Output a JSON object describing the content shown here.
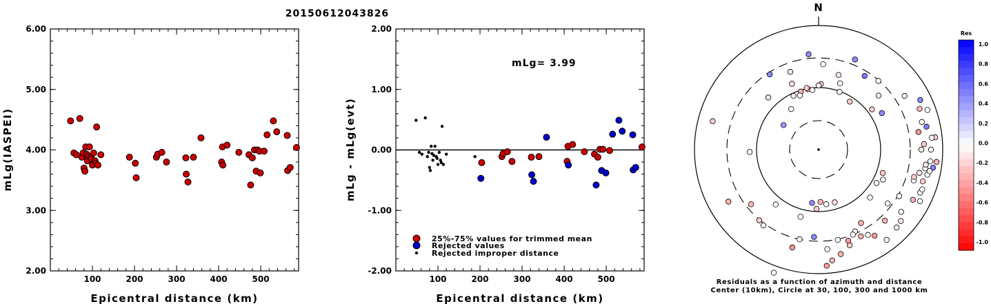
{
  "title": "20150612043826",
  "chart_data": [
    {
      "type": "scatter",
      "xlabel": "Epicentral distance (km)",
      "ylabel": "mLg(IASPEI)",
      "xlim": [
        0,
        590
      ],
      "ylim": [
        2.0,
        6.0
      ],
      "yticks": [
        "2.00",
        "3.00",
        "4.00",
        "5.00",
        "6.00"
      ],
      "xticks": [
        "100",
        "200",
        "300",
        "400",
        "500"
      ],
      "series": [
        {
          "points": [
            [
              48,
              4.48
            ],
            [
              56,
              3.95
            ],
            [
              62,
              3.92
            ],
            [
              70,
              4.52
            ],
            [
              75,
              3.88
            ],
            [
              78,
              3.95
            ],
            [
              80,
              3.7
            ],
            [
              82,
              3.65
            ],
            [
              84,
              4.05
            ],
            [
              86,
              3.93
            ],
            [
              88,
              3.82
            ],
            [
              90,
              3.9
            ],
            [
              93,
              4.05
            ],
            [
              96,
              3.88
            ],
            [
              98,
              3.85
            ],
            [
              100,
              3.75
            ],
            [
              103,
              3.95
            ],
            [
              106,
              3.82
            ],
            [
              108,
              3.78
            ],
            [
              110,
              4.38
            ],
            [
              113,
              3.75
            ],
            [
              120,
              3.92
            ],
            [
              188,
              3.88
            ],
            [
              202,
              3.78
            ],
            [
              204,
              3.54
            ],
            [
              252,
              3.88
            ],
            [
              255,
              3.93
            ],
            [
              265,
              3.96
            ],
            [
              276,
              3.8
            ],
            [
              322,
              3.87
            ],
            [
              323,
              3.6
            ],
            [
              327,
              3.47
            ],
            [
              340,
              3.88
            ],
            [
              358,
              4.2
            ],
            [
              407,
              3.8
            ],
            [
              409,
              4.05
            ],
            [
              410,
              3.75
            ],
            [
              420,
              4.08
            ],
            [
              448,
              3.96
            ],
            [
              472,
              3.92
            ],
            [
              476,
              3.42
            ],
            [
              480,
              3.87
            ],
            [
              485,
              4.0
            ],
            [
              489,
              3.65
            ],
            [
              492,
              4.0
            ],
            [
              497,
              3.98
            ],
            [
              499,
              3.62
            ],
            [
              508,
              3.98
            ],
            [
              515,
              4.25
            ],
            [
              530,
              4.48
            ],
            [
              538,
              4.3
            ],
            [
              563,
              4.24
            ],
            [
              564,
              3.66
            ],
            [
              570,
              3.71
            ],
            [
              585,
              4.04
            ]
          ]
        }
      ]
    },
    {
      "type": "scatter",
      "xlabel": "Epicentral distance (km)",
      "ylabel": "mLg - mLg(evt)",
      "xlim": [
        0,
        590
      ],
      "ylim": [
        -2.0,
        2.0
      ],
      "yticks": [
        "-2.00",
        "-1.00",
        "0.00",
        "1.00",
        "2.00"
      ],
      "xticks": [
        "100",
        "200",
        "300",
        "400",
        "500"
      ],
      "annotation": "mLg= 3.99",
      "legend": [
        "25%-75% values for trimmed mean",
        "Rejected values",
        "Rejected improper distance"
      ],
      "series": [
        {
          "name": "25%-75% values for trimmed mean",
          "points": [
            [
              204,
              -0.21
            ],
            [
              252,
              -0.11
            ],
            [
              255,
              -0.06
            ],
            [
              265,
              -0.03
            ],
            [
              276,
              -0.19
            ],
            [
              322,
              -0.12
            ],
            [
              340,
              -0.11
            ],
            [
              407,
              -0.19
            ],
            [
              409,
              0.06
            ],
            [
              420,
              0.09
            ],
            [
              448,
              -0.03
            ],
            [
              472,
              -0.07
            ],
            [
              480,
              -0.12
            ],
            [
              485,
              0.01
            ],
            [
              492,
              0.01
            ],
            [
              508,
              -0.01
            ],
            [
              585,
              0.05
            ]
          ]
        },
        {
          "name": "Rejected values",
          "points": [
            [
              202,
              -0.47
            ],
            [
              323,
              -0.41
            ],
            [
              327,
              -0.52
            ],
            [
              358,
              0.21
            ],
            [
              410,
              -0.25
            ],
            [
              476,
              -0.58
            ],
            [
              489,
              -0.34
            ],
            [
              499,
              -0.38
            ],
            [
              515,
              0.26
            ],
            [
              530,
              0.49
            ],
            [
              538,
              0.31
            ],
            [
              563,
              0.25
            ],
            [
              564,
              -0.33
            ],
            [
              570,
              -0.29
            ]
          ]
        },
        {
          "name": "Rejected improper distance",
          "points": [
            [
              48,
              0.49
            ],
            [
              56,
              -0.04
            ],
            [
              62,
              -0.07
            ],
            [
              70,
              0.53
            ],
            [
              75,
              -0.11
            ],
            [
              78,
              -0.04
            ],
            [
              80,
              -0.29
            ],
            [
              82,
              -0.34
            ],
            [
              84,
              0.06
            ],
            [
              86,
              -0.06
            ],
            [
              88,
              -0.17
            ],
            [
              90,
              -0.09
            ],
            [
              93,
              0.06
            ],
            [
              96,
              -0.11
            ],
            [
              98,
              -0.14
            ],
            [
              100,
              -0.24
            ],
            [
              103,
              -0.04
            ],
            [
              106,
              -0.17
            ],
            [
              108,
              -0.21
            ],
            [
              110,
              0.39
            ],
            [
              113,
              -0.24
            ],
            [
              120,
              -0.07
            ],
            [
              188,
              -0.11
            ]
          ]
        }
      ]
    },
    {
      "type": "polar-scatter",
      "north_label": "N",
      "caption_line1": "Residuals as a function of azimuth and distance",
      "caption_line2": "Center (10km), Circle at 30, 100, 300 and 1000 km",
      "colorbar_title": "Res",
      "colorbar_labels": [
        "1.0",
        "0.8",
        "0.6",
        "0.4",
        "0.2",
        "0.0",
        "-0.2",
        "-0.4",
        "-0.6",
        "-0.8",
        "-1.0"
      ],
      "colorbar_colors": [
        "#0000ff",
        "#3333ff",
        "#6666ff",
        "#9999ff",
        "#c5c5ff",
        "#ffffff",
        "#ffc8c8",
        "#ff9898",
        "#ff6868",
        "#ff3838",
        "#ff0000"
      ],
      "stations": [
        [
          22,
          141,
          0.45
        ],
        [
          32,
          126,
          0.52
        ],
        [
          60,
          106,
          0.45
        ],
        [
          3,
          124,
          0.0
        ],
        [
          -6,
          139,
          0.45
        ],
        [
          15,
          112,
          -0.1
        ],
        [
          18,
          101,
          0.0
        ],
        [
          327,
          130,
          0.45
        ],
        [
          340,
          120,
          -0.1
        ],
        [
          338,
          103,
          -0.1
        ],
        [
          316,
          105,
          -0.1
        ],
        [
          335,
          86,
          -0.1
        ],
        [
          2,
          95,
          -0.2
        ],
        [
          0,
          93,
          0.0
        ],
        [
          350,
          89,
          -0.3
        ],
        [
          354,
          87,
          0.0
        ],
        [
          343,
          88,
          -0.3
        ],
        [
          349,
          91,
          -0.2
        ],
        [
          341,
          83,
          0.0
        ],
        [
          326,
          71,
          0.0
        ],
        [
          305,
          62,
          0.4
        ],
        [
          20,
          89,
          0.0
        ],
        [
          33,
          83,
          -0.2
        ],
        [
          285,
          159,
          -0.2
        ],
        [
          268,
          100,
          0.0
        ],
        [
          240,
          151,
          -0.3
        ],
        [
          220,
          134,
          -0.2
        ],
        [
          231,
          126,
          -0.3
        ],
        [
          216,
          136,
          0.0
        ],
        [
          195,
          101,
          0.0
        ],
        [
          187,
          78,
          0.45
        ],
        [
          178,
          76,
          -0.3
        ],
        [
          172,
          80,
          0.0
        ],
        [
          163,
          80,
          -0.1
        ],
        [
          150,
          123,
          -0.3
        ],
        [
          156,
          130,
          0.0
        ],
        [
          162,
          146,
          -0.2
        ],
        [
          168,
          155,
          -0.3
        ],
        [
          173,
          162,
          -0.3
        ],
        [
          176,
          169,
          -0.4
        ],
        [
          183,
          127,
          0.45
        ],
        [
          192,
          133,
          0.0
        ],
        [
          195,
          147,
          -0.4
        ],
        [
          218,
          101,
          0.0
        ],
        [
          200,
          190,
          0.0
        ],
        [
          75,
          155,
          0.0
        ],
        [
          84,
          170,
          -0.2
        ],
        [
          90,
          163,
          0.0
        ],
        [
          96,
          172,
          -0.3
        ],
        [
          99,
          168,
          0.5
        ],
        [
          107,
          158,
          -0.2
        ],
        [
          118,
          155,
          -0.3
        ],
        [
          108,
          145,
          0.0
        ],
        [
          80,
          147,
          -0.4
        ],
        [
          87,
          153,
          -0.2
        ],
        [
          120,
          135,
          0.0
        ],
        [
          128,
          127,
          0.0
        ],
        [
          137,
          141,
          -0.3
        ],
        [
          113,
          160,
          0.0
        ],
        [
          103,
          162,
          0.0
        ],
        [
          70,
          168,
          0.0
        ],
        [
          64,
          164,
          0.45
        ],
        [
          100,
          157,
          0.0
        ],
        [
          103,
          150,
          -0.1
        ],
        [
          117,
          165,
          0.0
        ],
        [
          58,
          147,
          -0.1
        ],
        [
          41,
          132,
          0.0
        ],
        [
          133,
          102,
          0.0
        ],
        [
          115,
          103,
          0.0
        ],
        [
          110,
          99,
          -0.2
        ],
        [
          120,
          97,
          0.0
        ],
        [
          106,
          144,
          -0.2
        ],
        [
          98,
          157,
          -0.1
        ],
        [
          111,
          161,
          0.0
        ],
        [
          101,
          164,
          0.0
        ],
        [
          96,
          163,
          0.0
        ],
        [
          90,
          149,
          -0.1
        ],
        [
          78,
          160,
          0.5
        ],
        [
          84,
          165,
          0.0
        ],
        [
          48,
          117,
          -0.1
        ],
        [
          53,
          97,
          -0.2
        ],
        [
          68,
          158,
          -0.3
        ],
        [
          131,
          158,
          -0.1
        ],
        [
          127,
          150,
          0.0
        ],
        [
          135,
          160,
          0.0
        ],
        [
          143,
          164,
          0.0
        ],
        [
          147,
          149,
          -0.4
        ],
        [
          150,
          143,
          0.0
        ],
        [
          158,
          133,
          0.0
        ],
        [
          154,
          140,
          -0.3
        ],
        [
          182,
          86,
          -0.2
        ],
        [
          168,
          134,
          0.0
        ],
        [
          162,
          139,
          -0.4
        ],
        [
          175,
          145,
          0.0
        ]
      ]
    }
  ]
}
